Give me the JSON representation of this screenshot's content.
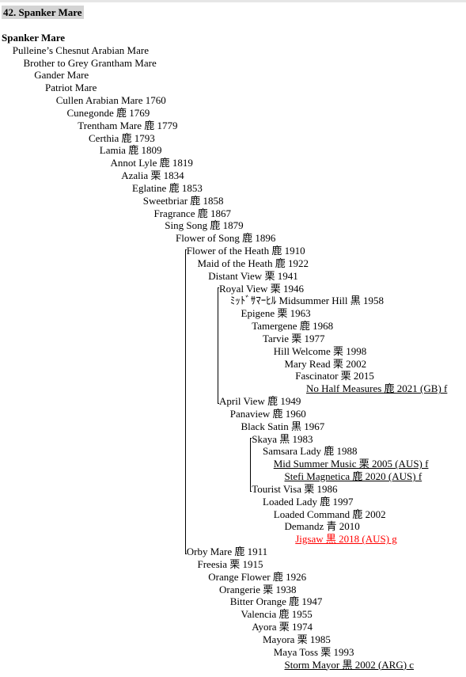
{
  "heading": "42. Spanker Mare",
  "lines": [
    {
      "name": "Spanker Mare",
      "level": 0,
      "root": true
    },
    {
      "name": "Pulleine’s Chesnut Arabian Mare",
      "level": 1
    },
    {
      "name": "Brother to Grey Grantham Mare",
      "level": 2
    },
    {
      "name": "Gander Mare",
      "level": 3
    },
    {
      "name": "Patriot Mare",
      "level": 4
    },
    {
      "name": "Cullen Arabian Mare 1760",
      "level": 5
    },
    {
      "name": "Cunegonde 鹿 1769",
      "level": 6
    },
    {
      "name": "Trentham Mare 鹿 1779",
      "level": 7
    },
    {
      "name": "Certhia 鹿 1793",
      "level": 8
    },
    {
      "name": "Lamia 鹿 1809",
      "level": 9
    },
    {
      "name": "Annot Lyle 鹿 1819",
      "level": 10
    },
    {
      "name": "Azalia 栗 1834",
      "level": 11
    },
    {
      "name": "Eglatine 鹿 1853",
      "level": 12
    },
    {
      "name": "Sweetbriar 鹿 1858",
      "level": 13
    },
    {
      "name": "Fragrance 鹿 1867",
      "level": 14
    },
    {
      "name": "Sing Song 鹿 1879",
      "level": 15
    },
    {
      "name": "Flower of Song 鹿 1896",
      "level": 16
    },
    {
      "name": "Flower of the Heath 鹿 1910",
      "level": 17
    },
    {
      "name": "Maid of the Heath 鹿 1922",
      "level": 18
    },
    {
      "name": "Distant View 栗 1941",
      "level": 19
    },
    {
      "name": "Royal View 栗 1946",
      "level": 20
    },
    {
      "name": "ﾐｯﾄﾞｻﾏｰﾋﾙ Midsummer Hill 黒 1958",
      "level": 21
    },
    {
      "name": "Epigene 栗 1963",
      "level": 22
    },
    {
      "name": "Tamergene 鹿 1968",
      "level": 23
    },
    {
      "name": "Tarvie 栗 1977",
      "level": 24
    },
    {
      "name": "Hill Welcome 栗 1998",
      "level": 25
    },
    {
      "name": "Mary Read 栗 2002",
      "level": 26
    },
    {
      "name": "Fascinator 栗 2015",
      "level": 27
    },
    {
      "name": "No Half Measures 鹿 2021 (GB) f",
      "level": 28,
      "underline": true
    },
    {
      "name": "April View 鹿 1949",
      "level": 20
    },
    {
      "name": "Panaview 鹿 1960",
      "level": 21
    },
    {
      "name": "Black Satin 黒 1967",
      "level": 22
    },
    {
      "name": "Skaya 黒 1983",
      "level": 23
    },
    {
      "name": "Samsara Lady 鹿 1988",
      "level": 24
    },
    {
      "name": "Mid Summer Music 栗 2005 (AUS) f",
      "level": 25,
      "underline": true
    },
    {
      "name": "Stefi Magnetica 鹿 2020 (AUS) f",
      "level": 26,
      "underline": true
    },
    {
      "name": "Tourist Visa 栗 1986",
      "level": 23
    },
    {
      "name": "Loaded Lady 鹿 1997",
      "level": 24
    },
    {
      "name": "Loaded Command 鹿 2002",
      "level": 25
    },
    {
      "name": "Demandz 青 2010",
      "level": 26
    },
    {
      "name": "Jigsaw 黒 2018 (AUS) g",
      "level": 27,
      "highlight": true
    },
    {
      "name": "Orby Mare 鹿 1911",
      "level": 17
    },
    {
      "name": "Freesia 栗 1915",
      "level": 18
    },
    {
      "name": "Orange Flower 鹿 1926",
      "level": 19
    },
    {
      "name": "Orangerie 栗 1938",
      "level": 20
    },
    {
      "name": "Bitter Orange 鹿 1947",
      "level": 21
    },
    {
      "name": "Valencia 鹿 1955",
      "level": 22
    },
    {
      "name": "Ayora 栗 1974",
      "level": 23
    },
    {
      "name": "Mayora 栗 1985",
      "level": 24
    },
    {
      "name": "Maya Toss 栗 1993",
      "level": 25
    },
    {
      "name": "Storm Mayor 黒 2002 (ARG) c",
      "level": 26,
      "underline": true
    }
  ]
}
